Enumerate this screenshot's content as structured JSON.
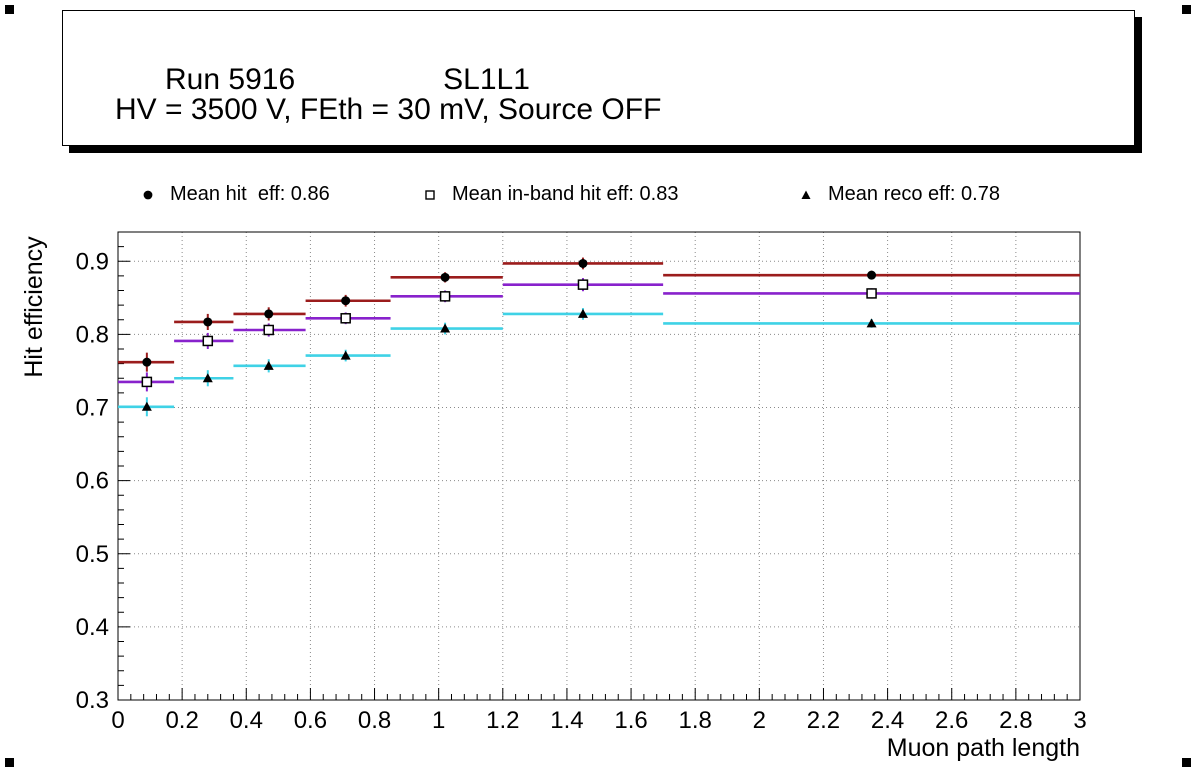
{
  "header": {
    "run_label": "Run 5916",
    "layer_label": "SL1L1",
    "conditions": "HV = 3500 V, FEth = 30 mV, Source OFF"
  },
  "chart_data": {
    "type": "scatter",
    "title": "Run 5916 SL1L1, HV = 3500 V, FEth = 30 mV, Source OFF",
    "xlabel": "Muon path length",
    "ylabel": "Hit efficiency",
    "xlim": [
      0,
      3
    ],
    "ylim": [
      0.3,
      0.94
    ],
    "grid": "dotted",
    "grid_color": "#8a8a8a",
    "frame_color": "#000000",
    "legend_position": "top",
    "xticks": {
      "values": [
        0,
        0.2,
        0.4,
        0.6,
        0.8,
        1,
        1.2,
        1.4,
        1.6,
        1.8,
        2,
        2.2,
        2.4,
        2.6,
        2.8,
        3
      ],
      "labels": [
        "0",
        "0.2",
        "0.4",
        "0.6",
        "0.8",
        "1",
        "1.2",
        "1.4",
        "1.6",
        "1.8",
        "2",
        "2.2",
        "2.4",
        "2.6",
        "2.8",
        "3"
      ]
    },
    "yticks": {
      "values": [
        0.3,
        0.4,
        0.5,
        0.6,
        0.7,
        0.8,
        0.9
      ],
      "labels": [
        "0.3",
        "0.4",
        "0.5",
        "0.6",
        "0.7",
        "0.8",
        "0.9"
      ]
    },
    "series": [
      {
        "name": "mean_hit_eff",
        "legend_label": "Mean hit  eff: 0.86",
        "mean_value": 0.86,
        "marker": "filled-circle",
        "marker_color": "#000000",
        "line_color": "#9b1c1c",
        "points": [
          {
            "x": 0.09,
            "xlo": 0.0,
            "xhi": 0.175,
            "y": 0.762,
            "ey": 0.013
          },
          {
            "x": 0.28,
            "xlo": 0.175,
            "xhi": 0.36,
            "y": 0.817,
            "ey": 0.011
          },
          {
            "x": 0.47,
            "xlo": 0.36,
            "xhi": 0.585,
            "y": 0.828,
            "ey": 0.009
          },
          {
            "x": 0.71,
            "xlo": 0.585,
            "xhi": 0.85,
            "y": 0.846,
            "ey": 0.008
          },
          {
            "x": 1.02,
            "xlo": 0.85,
            "xhi": 1.2,
            "y": 0.878,
            "ey": 0.007
          },
          {
            "x": 1.45,
            "xlo": 1.2,
            "xhi": 1.7,
            "y": 0.897,
            "ey": 0.008
          },
          {
            "x": 2.35,
            "xlo": 1.7,
            "xhi": 3.0,
            "y": 0.881,
            "ey": 0.006
          }
        ]
      },
      {
        "name": "mean_inband_hit_eff",
        "legend_label": "Mean in-band hit eff: 0.83",
        "mean_value": 0.83,
        "marker": "open-square",
        "marker_color": "#000000",
        "line_color": "#8822cc",
        "points": [
          {
            "x": 0.09,
            "xlo": 0.0,
            "xhi": 0.175,
            "y": 0.735,
            "ey": 0.013
          },
          {
            "x": 0.28,
            "xlo": 0.175,
            "xhi": 0.36,
            "y": 0.791,
            "ey": 0.011
          },
          {
            "x": 0.47,
            "xlo": 0.36,
            "xhi": 0.585,
            "y": 0.806,
            "ey": 0.009
          },
          {
            "x": 0.71,
            "xlo": 0.585,
            "xhi": 0.85,
            "y": 0.822,
            "ey": 0.008
          },
          {
            "x": 1.02,
            "xlo": 0.85,
            "xhi": 1.2,
            "y": 0.852,
            "ey": 0.008
          },
          {
            "x": 1.45,
            "xlo": 1.2,
            "xhi": 1.7,
            "y": 0.868,
            "ey": 0.009
          },
          {
            "x": 2.35,
            "xlo": 1.7,
            "xhi": 3.0,
            "y": 0.856,
            "ey": 0.007
          }
        ]
      },
      {
        "name": "mean_reco_eff",
        "legend_label": "Mean reco eff: 0.78",
        "mean_value": 0.78,
        "marker": "filled-triangle",
        "marker_color": "#000000",
        "line_color": "#3fd2e6",
        "points": [
          {
            "x": 0.09,
            "xlo": 0.0,
            "xhi": 0.175,
            "y": 0.701,
            "ey": 0.013
          },
          {
            "x": 0.28,
            "xlo": 0.175,
            "xhi": 0.36,
            "y": 0.74,
            "ey": 0.011
          },
          {
            "x": 0.47,
            "xlo": 0.36,
            "xhi": 0.585,
            "y": 0.757,
            "ey": 0.009
          },
          {
            "x": 0.71,
            "xlo": 0.585,
            "xhi": 0.85,
            "y": 0.771,
            "ey": 0.008
          },
          {
            "x": 1.02,
            "xlo": 0.85,
            "xhi": 1.2,
            "y": 0.808,
            "ey": 0.008
          },
          {
            "x": 1.45,
            "xlo": 1.2,
            "xhi": 1.7,
            "y": 0.828,
            "ey": 0.008
          },
          {
            "x": 2.35,
            "xlo": 1.7,
            "xhi": 3.0,
            "y": 0.815,
            "ey": 0.006
          }
        ]
      }
    ]
  }
}
